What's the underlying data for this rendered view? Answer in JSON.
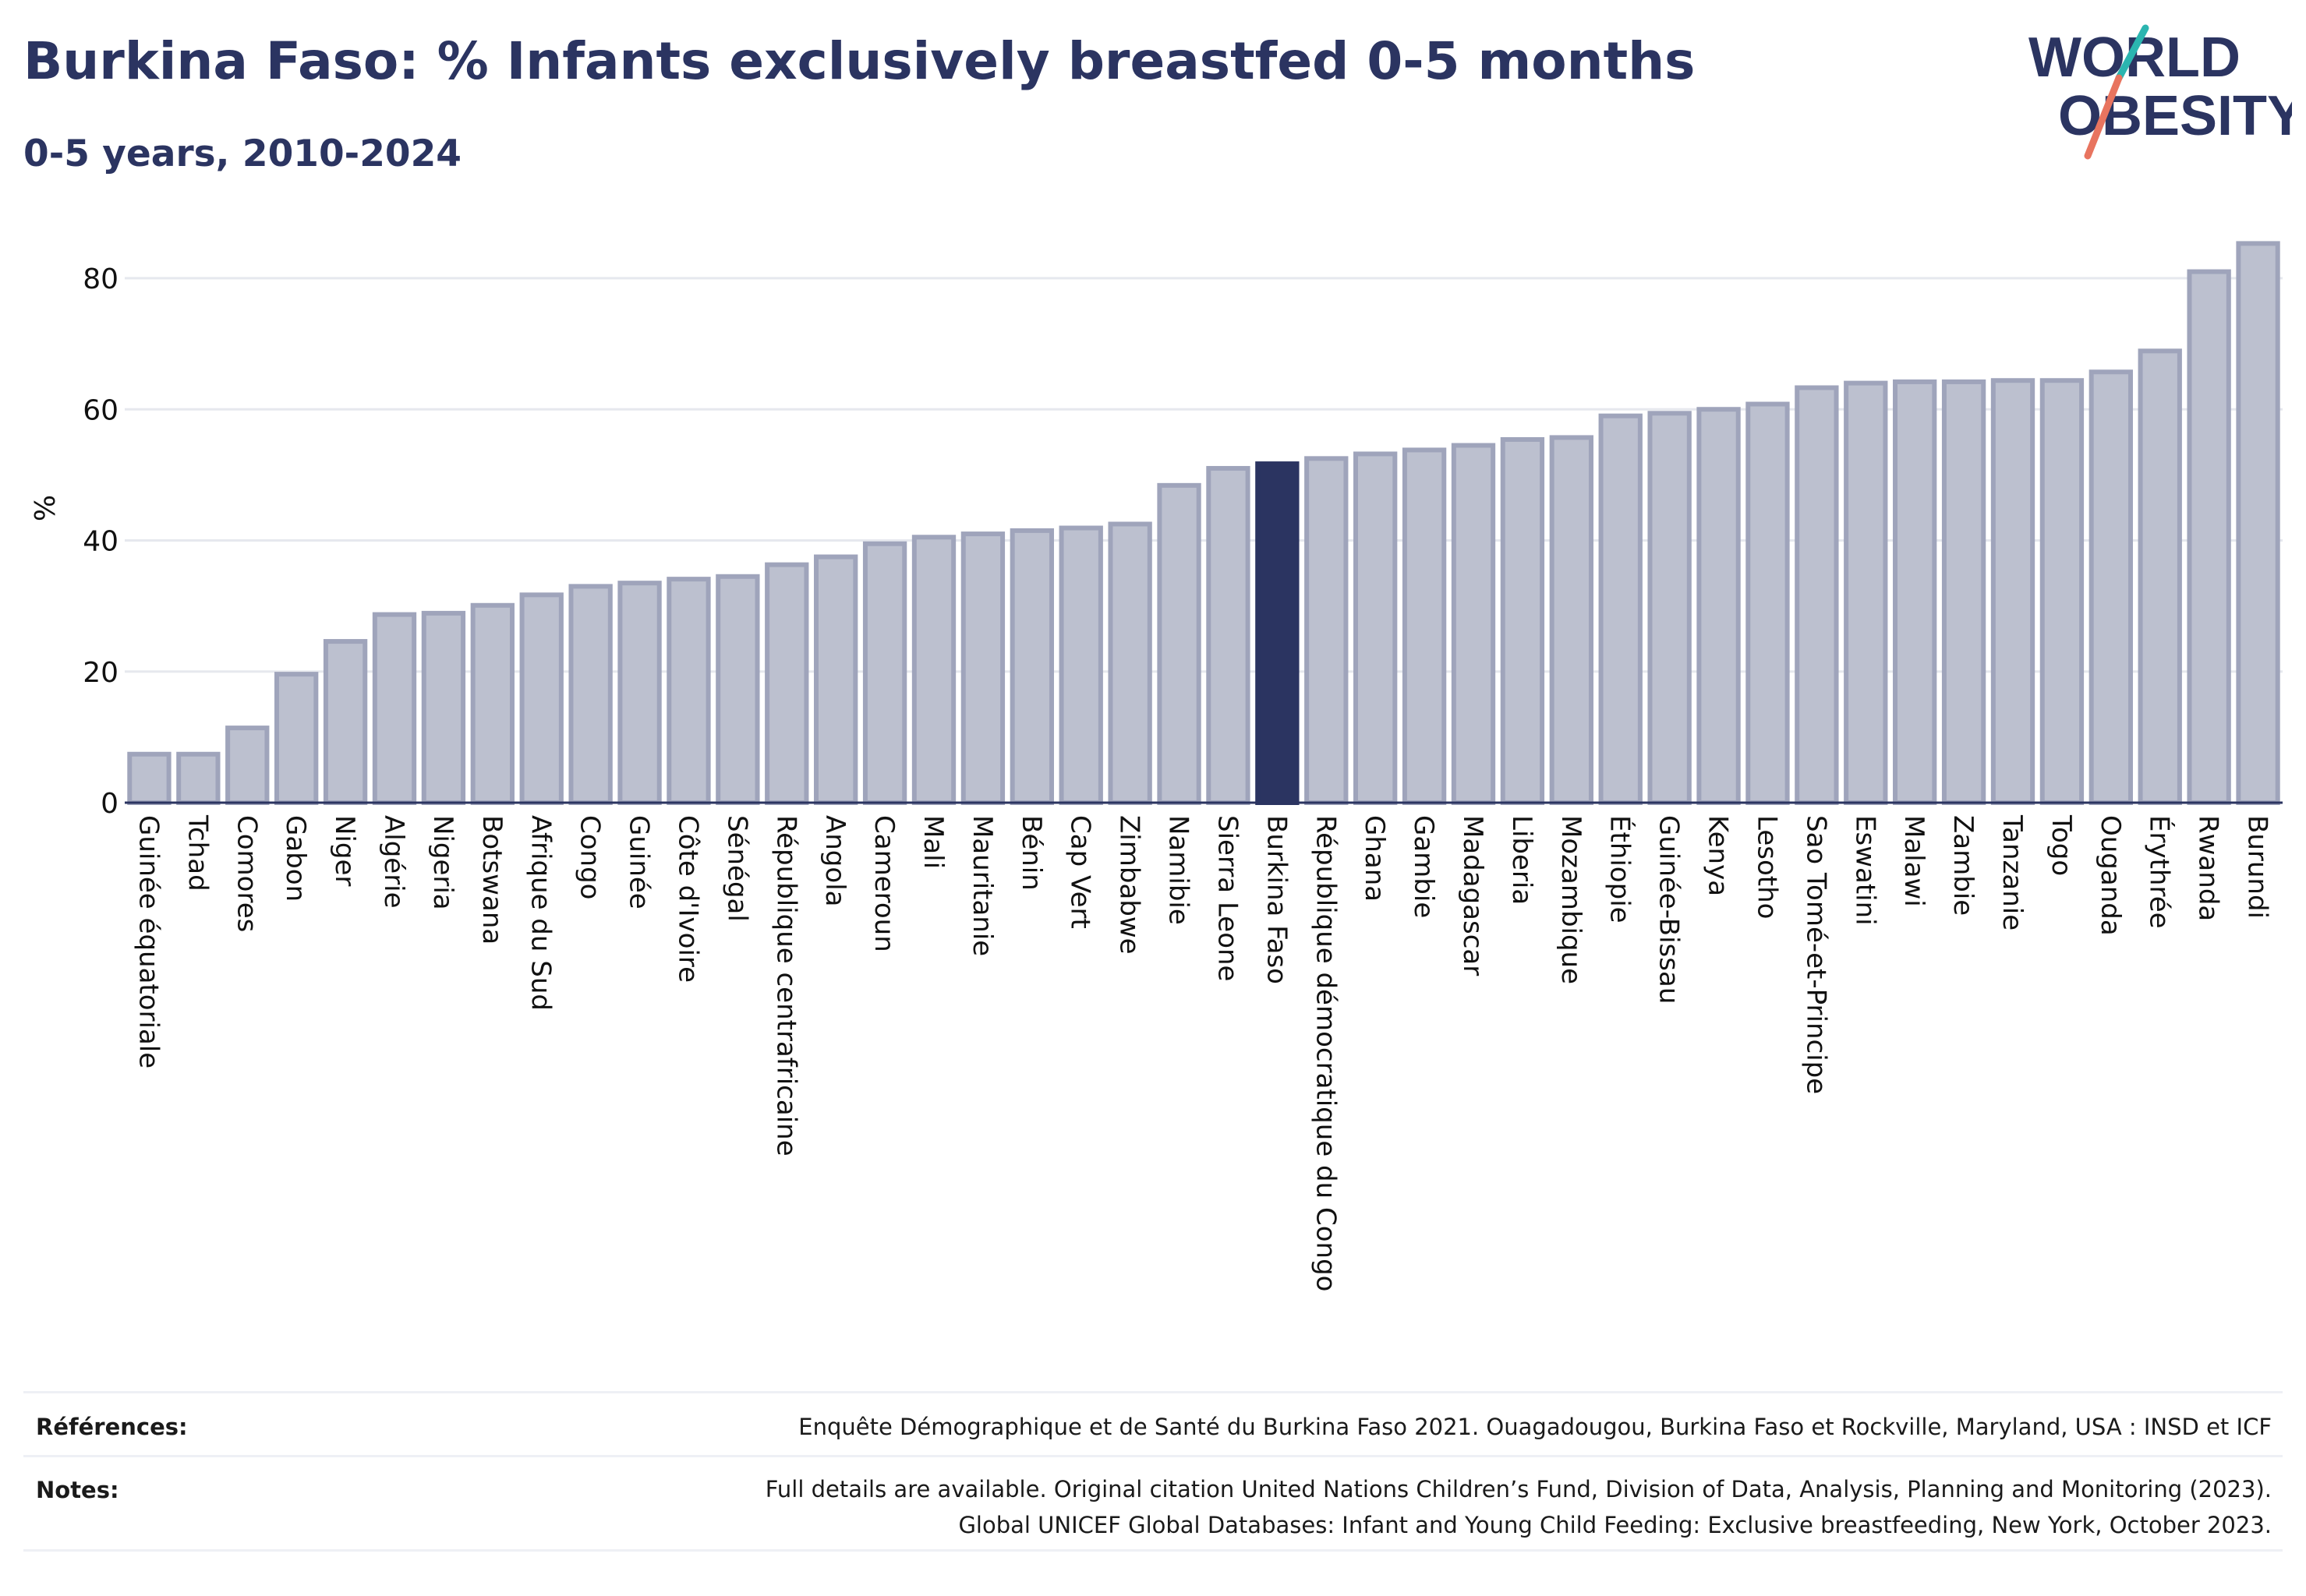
{
  "header": {
    "title": "Burkina Faso: % Infants exclusively breastfed 0-5 months",
    "subtitle": "0-5 years, 2010-2024",
    "logo_line1": "WORLD",
    "logo_line2": "OBESITY"
  },
  "colors": {
    "title": "#2b3461",
    "bar": "#bcc0cf",
    "bar_border": "#9fa4bb",
    "highlight": "#2b3461",
    "grid": "#e6e8ee",
    "logo_teal": "#2bb5b0",
    "logo_coral": "#e8745f"
  },
  "chart_data": {
    "type": "bar",
    "ylabel": "%",
    "ylim": [
      0,
      90
    ],
    "yticks": [
      0,
      20,
      40,
      60,
      80
    ],
    "grid": true,
    "highlight": "Burkina Faso",
    "categories": [
      "Guinée équatoriale",
      "Tchad",
      "Comores",
      "Gabon",
      "Niger",
      "Algérie",
      "Nigeria",
      "Botswana",
      "Afrique du Sud",
      "Congo",
      "Guinée",
      "Côte d'Ivoire",
      "Sénégal",
      "République centrafricaine",
      "Angola",
      "Cameroun",
      "Mali",
      "Mauritanie",
      "Bénin",
      "Cap Vert",
      "Zimbabwe",
      "Namibie",
      "Sierra Leone",
      "Burkina Faso",
      "République démocratique du Congo",
      "Ghana",
      "Gambie",
      "Madagascar",
      "Liberia",
      "Mozambique",
      "Éthiopie",
      "Guinée-Bissau",
      "Kenya",
      "Lesotho",
      "Sao Tomé-et-Principe",
      "Eswatini",
      "Malawi",
      "Zambie",
      "Tanzanie",
      "Togo",
      "Ouganda",
      "Érythrée",
      "Rwanda",
      "Burundi"
    ],
    "values": [
      7.4,
      7.4,
      11.4,
      19.6,
      24.6,
      28.7,
      28.9,
      30.1,
      31.7,
      33.0,
      33.5,
      34.1,
      34.5,
      36.3,
      37.5,
      39.5,
      40.5,
      41.0,
      41.5,
      41.9,
      42.5,
      48.4,
      51.0,
      51.7,
      52.5,
      53.2,
      53.8,
      54.5,
      55.4,
      55.7,
      59.0,
      59.4,
      60.0,
      60.8,
      63.3,
      64.0,
      64.2,
      64.2,
      64.4,
      64.4,
      65.7,
      68.9,
      81.0,
      85.3
    ]
  },
  "footer": {
    "references_label": "Références:",
    "references_text": "Enquête Démographique et de Santé du Burkina Faso 2021. Ouagadougou, Burkina Faso et Rockville, Maryland, USA : INSD et ICF",
    "notes_label": "Notes:",
    "notes_line1": "Full details are available. Original citation United Nations Children’s Fund, Division of Data, Analysis, Planning and Monitoring (2023).",
    "notes_line2": "Global UNICEF Global Databases: Infant and Young Child Feeding: Exclusive breastfeeding, New York, October 2023."
  }
}
